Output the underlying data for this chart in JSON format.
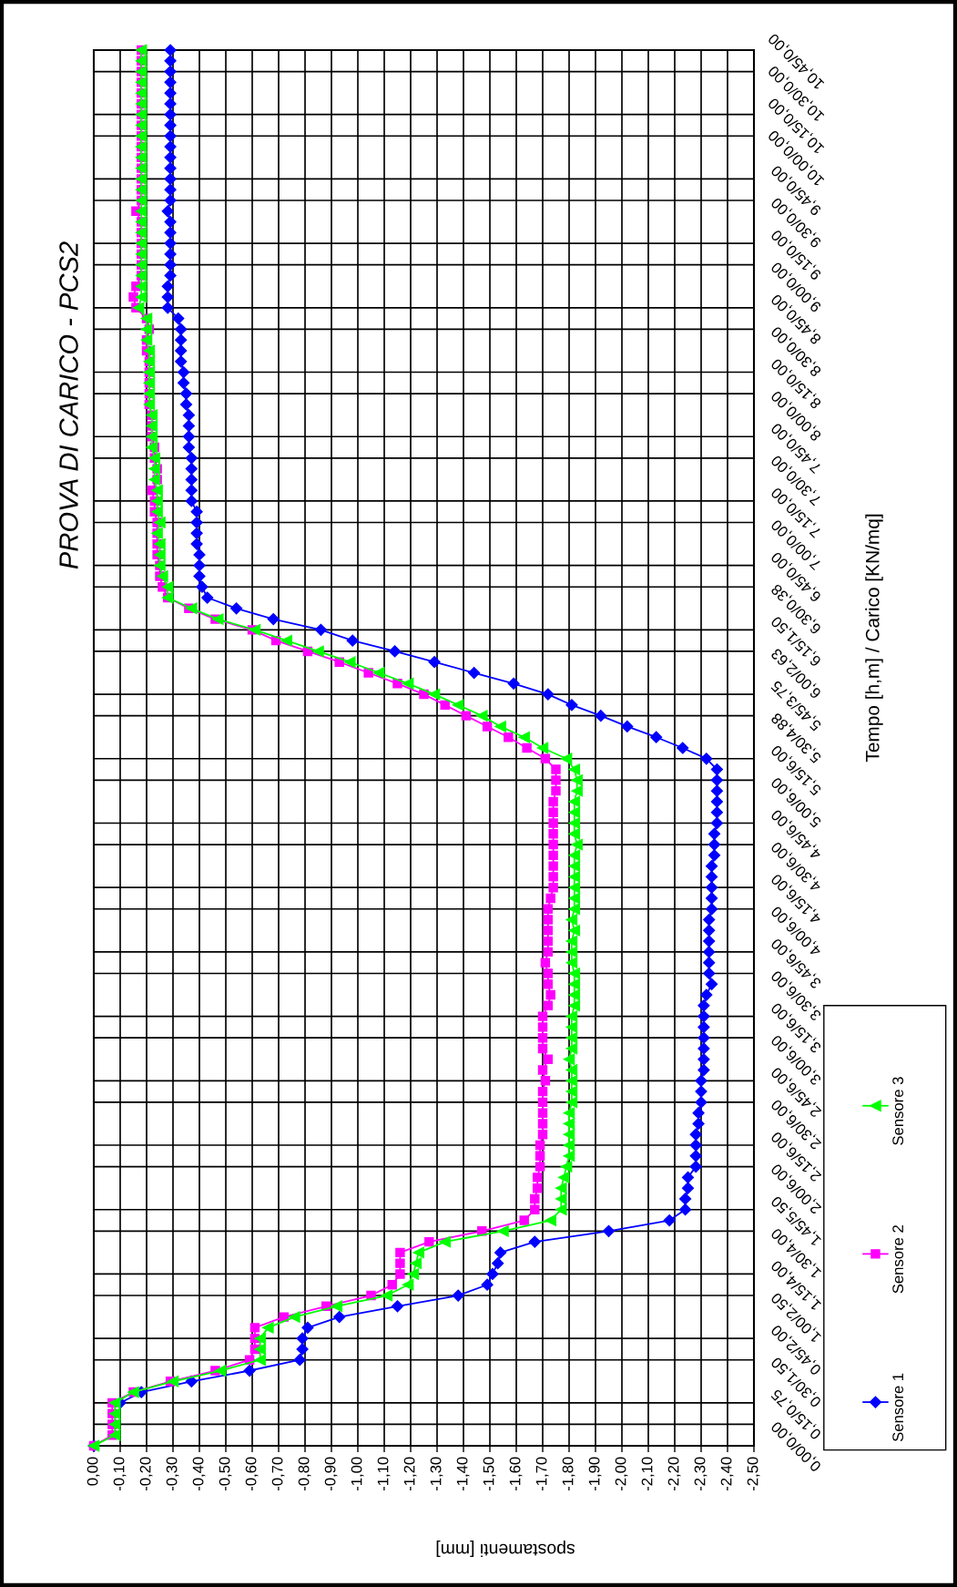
{
  "chart_data": {
    "type": "line",
    "orientation": "horizontal",
    "title": "PROVA DI CARICO - PCS2",
    "ylabel": "Tempo [h,m] / Carico [KN/mq]",
    "xlabel": "spostamenti [mm]",
    "categories": [
      null,
      "10,45/0,00",
      null,
      null,
      "10,30/0,00",
      null,
      null,
      "10,15/0,00",
      null,
      null,
      "10,00/0,00",
      null,
      null,
      "9,45/0,00",
      null,
      null,
      "9,30/0,00",
      null,
      null,
      "9,15/0,00",
      null,
      null,
      "9,00/0,00",
      null,
      null,
      "8,45/0,00",
      null,
      null,
      "8,30/0,00",
      null,
      null,
      "8,15/0,00",
      null,
      null,
      "8,00/0,00",
      null,
      null,
      "7,45/0,00",
      null,
      null,
      "7,30/0,00",
      null,
      null,
      "7,15/0,00",
      null,
      null,
      "7,00/0,00",
      null,
      null,
      "6,45/0,00",
      null,
      null,
      "6,30/0,38",
      null,
      null,
      "6,15/1,50",
      null,
      null,
      "6,00/2,63",
      null,
      null,
      "5,45/3,75",
      null,
      null,
      "5,30/4,88",
      null,
      null,
      "5,15/6,00",
      null,
      null,
      "5,00/6,00",
      null,
      null,
      "4,45/6,00",
      null,
      null,
      "4,30/6,00",
      null,
      null,
      "4,15/6,00",
      null,
      null,
      "4,00/6,00",
      null,
      null,
      "3,45/6,00",
      null,
      null,
      "3,30/6,00",
      null,
      null,
      "3,15/6,00",
      null,
      null,
      "3,00/6,00",
      null,
      null,
      "2,45/6,00",
      null,
      null,
      "2,30/6,00",
      null,
      null,
      "2,15/6,00",
      null,
      null,
      "2,00/6,00",
      null,
      null,
      "1,45/5,50",
      null,
      null,
      "1,30/4,00",
      null,
      null,
      "1,15/4,00",
      null,
      null,
      "1,00/2,50",
      null,
      null,
      "0,45/2,00",
      null,
      null,
      "0,30/1,50",
      null,
      null,
      "0,15/0,75",
      null,
      null,
      "0,00/0,00"
    ],
    "series": [
      {
        "name": "Sensore 1",
        "color": "#0000ff",
        "marker": "diamond",
        "values": [
          -0.29,
          -0.29,
          -0.29,
          -0.29,
          -0.29,
          -0.29,
          -0.29,
          -0.29,
          -0.29,
          -0.29,
          -0.29,
          -0.29,
          -0.29,
          -0.29,
          -0.29,
          -0.28,
          -0.29,
          -0.29,
          -0.29,
          -0.29,
          -0.29,
          -0.29,
          -0.28,
          -0.28,
          -0.28,
          -0.32,
          -0.33,
          -0.33,
          -0.33,
          -0.33,
          -0.34,
          -0.34,
          -0.35,
          -0.35,
          -0.36,
          -0.36,
          -0.36,
          -0.36,
          -0.37,
          -0.37,
          -0.37,
          -0.37,
          -0.37,
          -0.39,
          -0.39,
          -0.39,
          -0.39,
          -0.4,
          -0.4,
          -0.4,
          -0.41,
          -0.43,
          -0.54,
          -0.68,
          -0.86,
          -0.98,
          -1.14,
          -1.29,
          -1.44,
          -1.59,
          -1.72,
          -1.81,
          -1.92,
          -2.02,
          -2.13,
          -2.23,
          -2.32,
          -2.36,
          -2.36,
          -2.36,
          -2.36,
          -2.36,
          -2.36,
          -2.35,
          -2.35,
          -2.35,
          -2.34,
          -2.34,
          -2.34,
          -2.34,
          -2.34,
          -2.33,
          -2.33,
          -2.33,
          -2.33,
          -2.33,
          -2.33,
          -2.34,
          -2.32,
          -2.31,
          -2.31,
          -2.31,
          -2.31,
          -2.31,
          -2.31,
          -2.31,
          -2.3,
          -2.3,
          -2.3,
          -2.29,
          -2.29,
          -2.28,
          -2.28,
          -2.28,
          -2.28,
          -2.25,
          -2.25,
          -2.24,
          -2.24,
          -2.18,
          -1.95,
          -1.67,
          -1.54,
          -1.53,
          -1.51,
          -1.49,
          -1.38,
          -1.15,
          -0.93,
          -0.81,
          -0.79,
          -0.79,
          -0.78,
          -0.59,
          -0.37,
          -0.18,
          -0.1,
          null,
          null,
          null,
          0
        ]
      },
      {
        "name": "Sensore 2",
        "color": "#ff00ff",
        "marker": "square",
        "values": [
          -0.18,
          -0.18,
          -0.18,
          -0.18,
          -0.18,
          -0.18,
          -0.18,
          -0.18,
          -0.18,
          -0.18,
          -0.18,
          -0.18,
          -0.18,
          -0.18,
          -0.18,
          -0.16,
          -0.18,
          -0.18,
          -0.18,
          -0.18,
          -0.18,
          -0.18,
          -0.16,
          -0.15,
          -0.16,
          -0.2,
          -0.21,
          -0.2,
          -0.2,
          -0.21,
          -0.21,
          -0.21,
          -0.21,
          -0.21,
          -0.22,
          -0.22,
          -0.22,
          -0.23,
          -0.23,
          -0.24,
          -0.24,
          -0.22,
          -0.23,
          -0.23,
          -0.24,
          -0.24,
          -0.24,
          -0.24,
          -0.25,
          -0.25,
          -0.26,
          -0.28,
          -0.36,
          -0.46,
          -0.6,
          -0.69,
          -0.81,
          -0.93,
          -1.04,
          -1.15,
          -1.25,
          -1.33,
          -1.41,
          -1.49,
          -1.57,
          -1.64,
          -1.71,
          -1.75,
          -1.75,
          -1.75,
          -1.74,
          -1.74,
          -1.74,
          -1.74,
          -1.74,
          -1.74,
          -1.74,
          -1.74,
          -1.74,
          -1.73,
          -1.72,
          -1.72,
          -1.72,
          -1.72,
          -1.72,
          -1.71,
          -1.72,
          -1.72,
          -1.73,
          -1.72,
          -1.7,
          -1.7,
          -1.7,
          -1.7,
          -1.72,
          -1.7,
          -1.71,
          -1.7,
          -1.7,
          -1.7,
          -1.7,
          -1.7,
          -1.69,
          -1.69,
          -1.69,
          -1.68,
          -1.68,
          -1.67,
          -1.67,
          -1.63,
          -1.47,
          -1.27,
          -1.16,
          -1.16,
          -1.16,
          -1.13,
          -1.05,
          -0.88,
          -0.72,
          -0.61,
          -0.61,
          -0.61,
          -0.59,
          -0.46,
          -0.29,
          -0.15,
          -0.07,
          -0.07,
          -0.07,
          -0.07,
          0
        ]
      },
      {
        "name": "Sensore 3",
        "color": "#00ff00",
        "marker": "triangle",
        "values": [
          -0.18,
          -0.18,
          -0.18,
          -0.18,
          -0.18,
          -0.18,
          -0.18,
          -0.18,
          -0.18,
          -0.18,
          -0.18,
          -0.18,
          -0.18,
          -0.18,
          -0.18,
          -0.18,
          -0.18,
          -0.18,
          -0.18,
          -0.18,
          -0.18,
          -0.18,
          -0.18,
          -0.18,
          -0.17,
          -0.2,
          -0.2,
          -0.2,
          -0.21,
          -0.21,
          -0.21,
          -0.21,
          -0.21,
          -0.21,
          -0.22,
          -0.22,
          -0.22,
          -0.22,
          -0.23,
          -0.23,
          -0.23,
          -0.24,
          -0.24,
          -0.24,
          -0.25,
          -0.24,
          -0.25,
          -0.25,
          -0.25,
          -0.26,
          -0.28,
          -0.28,
          -0.37,
          -0.47,
          -0.61,
          -0.73,
          -0.85,
          -0.97,
          -1.08,
          -1.19,
          -1.29,
          -1.38,
          -1.47,
          -1.54,
          -1.63,
          -1.7,
          -1.79,
          -1.82,
          -1.83,
          -1.83,
          -1.82,
          -1.82,
          -1.82,
          -1.82,
          -1.83,
          -1.82,
          -1.82,
          -1.82,
          -1.82,
          -1.82,
          -1.82,
          -1.81,
          -1.82,
          -1.81,
          -1.81,
          -1.81,
          -1.82,
          -1.82,
          -1.82,
          -1.82,
          -1.81,
          -1.81,
          -1.81,
          -1.81,
          -1.8,
          -1.81,
          -1.81,
          -1.81,
          -1.81,
          -1.8,
          -1.8,
          -1.8,
          -1.8,
          -1.8,
          -1.79,
          -1.78,
          -1.77,
          -1.77,
          -1.77,
          -1.73,
          -1.55,
          -1.33,
          -1.23,
          -1.22,
          -1.21,
          -1.19,
          -1.11,
          -0.92,
          -0.76,
          -0.66,
          -0.63,
          -0.63,
          -0.63,
          -0.48,
          -0.3,
          -0.15,
          -0.08,
          -0.08,
          -0.08,
          -0.08,
          0
        ]
      }
    ],
    "xlim": [
      0,
      -2.5
    ],
    "xticks": [
      {
        "value": 0,
        "label": "0,00"
      },
      {
        "value": -0.1,
        "label": "-0,10"
      },
      {
        "value": -0.2,
        "label": "-0,20"
      },
      {
        "value": -0.3,
        "label": "-0,30"
      },
      {
        "value": -0.4,
        "label": "-0,40"
      },
      {
        "value": -0.5,
        "label": "-0,50"
      },
      {
        "value": -0.6,
        "label": "-0,60"
      },
      {
        "value": -0.7,
        "label": "-0,70"
      },
      {
        "value": -0.8,
        "label": "-0,80"
      },
      {
        "value": -0.9,
        "label": "-0,90"
      },
      {
        "value": -1.0,
        "label": "-1,00"
      },
      {
        "value": -1.1,
        "label": "-1,10"
      },
      {
        "value": -1.2,
        "label": "-1,20"
      },
      {
        "value": -1.3,
        "label": "-1,30"
      },
      {
        "value": -1.4,
        "label": "-1,40"
      },
      {
        "value": -1.5,
        "label": "-1,50"
      },
      {
        "value": -1.6,
        "label": "-1,60"
      },
      {
        "value": -1.7,
        "label": "-1,70"
      },
      {
        "value": -1.8,
        "label": "-1,80"
      },
      {
        "value": -1.9,
        "label": "-1,90"
      },
      {
        "value": -2.0,
        "label": "-2,00"
      },
      {
        "value": -2.1,
        "label": "-2,10"
      },
      {
        "value": -2.2,
        "label": "-2,20"
      },
      {
        "value": -2.3,
        "label": "-2,30"
      },
      {
        "value": -2.4,
        "label": "-2,40"
      },
      {
        "value": -2.5,
        "label": "-2,50"
      }
    ],
    "grid": true,
    "legend": "right"
  }
}
